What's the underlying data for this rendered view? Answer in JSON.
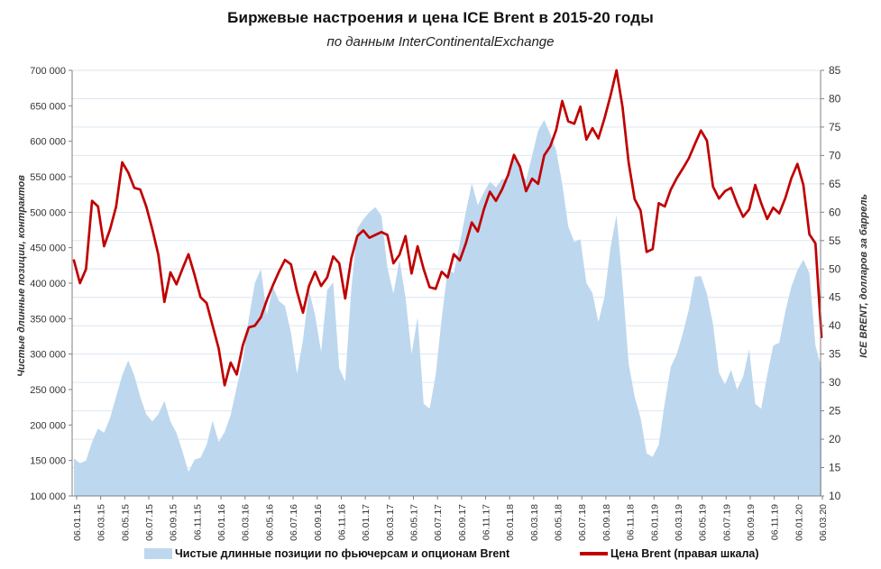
{
  "header": {
    "title": "Биржевые настроения и цена ICE Brent в 2015-20 годы",
    "subtitle": "по данным InterContinentalExchange"
  },
  "legend": {
    "positions_label": "Чистые длинные позиции по фьючерсам и опционам Brent",
    "price_label": "Цена Brent (правая шкала)"
  },
  "colors": {
    "area_fill": "#bdd7ee",
    "price_line": "#c00000",
    "gridline": "#dce6f2",
    "axis_line": "#808080",
    "tick_text": "#333333"
  },
  "chart_data": {
    "type": "combo",
    "description": "Weekly ICE Brent net long positions (area, left axis, contracts) and Brent price (line, right axis, USD/bbl), Jan 2015 - Mar 2020, sampled semi-monthly",
    "x_start_label": "06.01.15",
    "x_end_label": "06.03.20",
    "x_tick_labels": [
      "06.01.15",
      "06.03.15",
      "06.05.15",
      "06.07.15",
      "06.09.15",
      "06.11.15",
      "06.01.16",
      "06.03.16",
      "06.05.16",
      "06.07.16",
      "06.09.16",
      "06.11.16",
      "06.01.17",
      "06.03.17",
      "06.05.17",
      "06.07.17",
      "06.09.17",
      "06.11.17",
      "06.01.18",
      "06.03.18",
      "06.05.18",
      "06.07.18",
      "06.09.18",
      "06.11.18",
      "06.01.19",
      "06.03.19",
      "06.05.19",
      "06.07.19",
      "06.09.19",
      "06.11.19",
      "06.01.20",
      "06.03.20"
    ],
    "left_axis": {
      "label": "Чистые длинные позиции, контрактов",
      "min": 100000,
      "max": 700000,
      "step": 50000
    },
    "right_axis": {
      "label": "ICE BRENT, долларов за баррель",
      "min": 10,
      "max": 85,
      "step": 5
    },
    "grid": "horizontal, every 5 USD of right axis",
    "legend_position": "bottom",
    "series": [
      {
        "name": "Чистые длинные позиции по фьючерсам и опционам Brent",
        "type": "area",
        "axis": "left",
        "color": "#bdd7ee",
        "values": [
          153000,
          146000,
          150000,
          176000,
          195000,
          189000,
          210000,
          240000,
          270000,
          291000,
          270000,
          240000,
          215000,
          205000,
          215000,
          234000,
          205000,
          189000,
          163000,
          134000,
          151000,
          154000,
          172000,
          206000,
          176000,
          190000,
          214000,
          253000,
          290000,
          350000,
          400000,
          420000,
          355000,
          395000,
          375000,
          368000,
          330000,
          272000,
          320000,
          390000,
          355000,
          303000,
          390000,
          401000,
          280000,
          261000,
          390000,
          477000,
          490000,
          500000,
          507000,
          495000,
          422000,
          385000,
          433000,
          380000,
          300000,
          352000,
          230000,
          223000,
          270000,
          350000,
          420000,
          414000,
          456000,
          500000,
          541000,
          510000,
          528000,
          543000,
          535000,
          547000,
          545000,
          580000,
          560000,
          545000,
          580000,
          615000,
          630000,
          610000,
          587000,
          540000,
          480000,
          458000,
          462000,
          400000,
          386000,
          345000,
          380000,
          450000,
          496000,
          400000,
          287000,
          240000,
          210000,
          160000,
          155000,
          172000,
          231000,
          282000,
          300000,
          329000,
          363000,
          409000,
          410000,
          385000,
          342000,
          274000,
          257000,
          278000,
          250000,
          268000,
          307000,
          230000,
          223000,
          270000,
          312000,
          316000,
          360000,
          395000,
          418000,
          433000,
          414000,
          312000,
          280000
        ]
      },
      {
        "name": "Цена Brent (правая шкала)",
        "type": "line",
        "axis": "right",
        "color": "#c00000",
        "values": [
          51.5,
          47.5,
          50,
          62,
          61,
          54,
          57,
          61,
          68.8,
          67,
          64.3,
          64,
          61,
          57,
          52.5,
          44.2,
          49.4,
          47.3,
          50,
          52.6,
          49,
          45,
          44,
          40,
          36,
          29.5,
          33.5,
          31.4,
          36.5,
          39.7,
          40,
          41.5,
          44.5,
          47.1,
          49.5,
          51.6,
          50.8,
          46,
          42.3,
          47,
          49.5,
          47,
          48.5,
          52.2,
          51,
          44.8,
          51.8,
          55.8,
          56.8,
          55.5,
          56,
          56.5,
          56,
          51,
          52.5,
          55.8,
          49.2,
          54,
          50,
          46.8,
          46.5,
          49.5,
          48.5,
          52.6,
          51.5,
          54.5,
          58.2,
          56.6,
          60.5,
          63.6,
          62,
          64,
          66.5,
          70.1,
          68,
          63.7,
          65.9,
          65,
          70,
          71.6,
          74.5,
          79.6,
          76,
          75.6,
          78.6,
          72.8,
          74.8,
          73,
          76.5,
          80.5,
          85,
          78.5,
          68.8,
          62.3,
          60.3,
          53,
          53.5,
          61.6,
          61,
          64,
          66,
          67.7,
          69.5,
          72,
          74.4,
          72.6,
          64.5,
          62.4,
          63.7,
          64.3,
          61.5,
          59.2,
          60.5,
          64.8,
          61.6,
          58.8,
          60.8,
          59.8,
          62.5,
          66,
          68.5,
          64.8,
          56.1,
          54.5,
          38
        ]
      }
    ]
  }
}
